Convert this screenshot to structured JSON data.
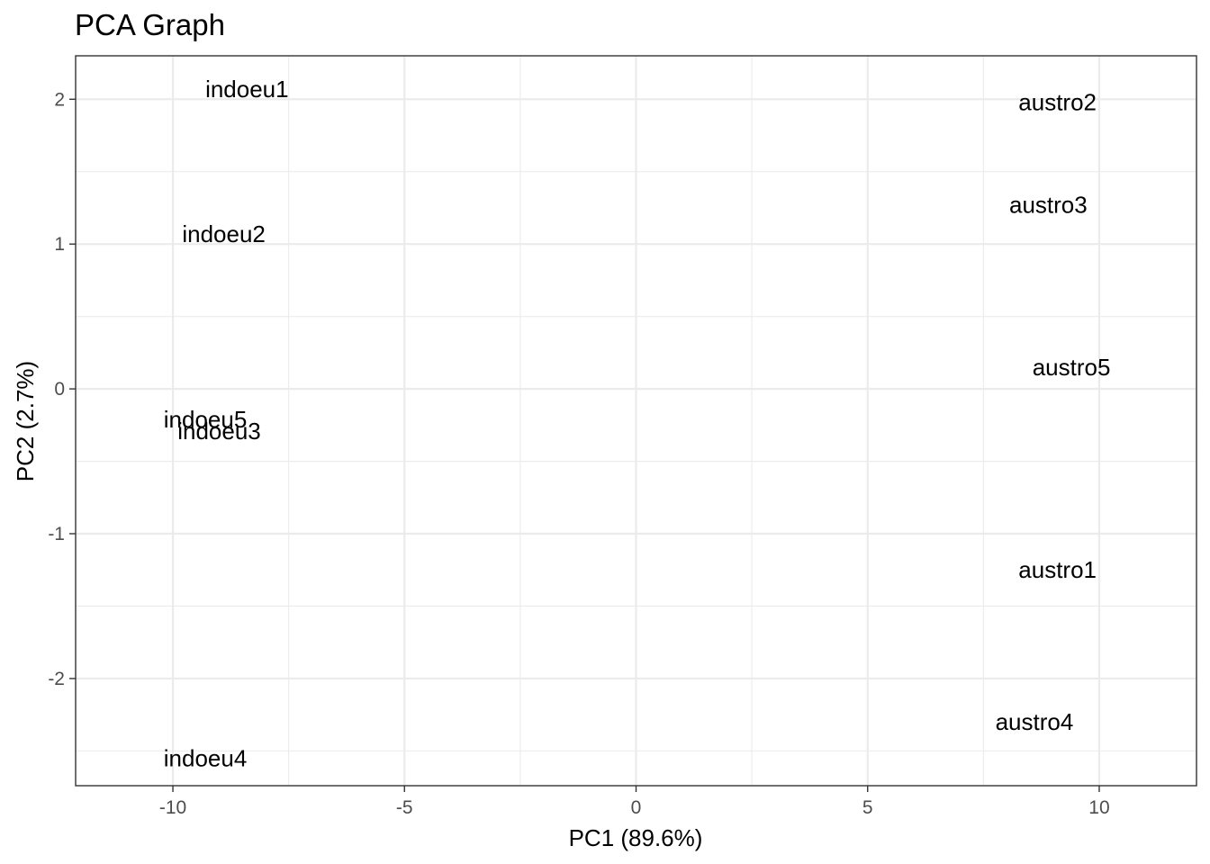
{
  "chart_data": {
    "type": "scatter",
    "title": "PCA Graph",
    "xlabel": "PC1 (89.6%)",
    "ylabel": "PC2 (2.7%)",
    "xlim": [
      -12.1,
      12.1
    ],
    "ylim": [
      -2.74,
      2.3
    ],
    "xticks": [
      -10,
      -5,
      0,
      5,
      10
    ],
    "yticks": [
      -2,
      -1,
      0,
      1,
      2
    ],
    "grid": true,
    "colors": {
      "text": "#000000",
      "tick_text": "#4d4d4d",
      "grid": "#ebebeb",
      "border": "#333333"
    },
    "points": [
      {
        "label": "indoeu1",
        "x": -8.4,
        "y": 2.07
      },
      {
        "label": "indoeu2",
        "x": -8.9,
        "y": 1.07
      },
      {
        "label": "indoeu3",
        "x": -9.0,
        "y": -0.29
      },
      {
        "label": "indoeu4",
        "x": -9.3,
        "y": -2.55
      },
      {
        "label": "indoeu5",
        "x": -9.3,
        "y": -0.21
      },
      {
        "label": "austro1",
        "x": 9.1,
        "y": -1.25
      },
      {
        "label": "austro2",
        "x": 9.1,
        "y": 1.98
      },
      {
        "label": "austro3",
        "x": 8.9,
        "y": 1.27
      },
      {
        "label": "austro4",
        "x": 8.6,
        "y": -2.3
      },
      {
        "label": "austro5",
        "x": 9.4,
        "y": 0.15
      }
    ]
  }
}
